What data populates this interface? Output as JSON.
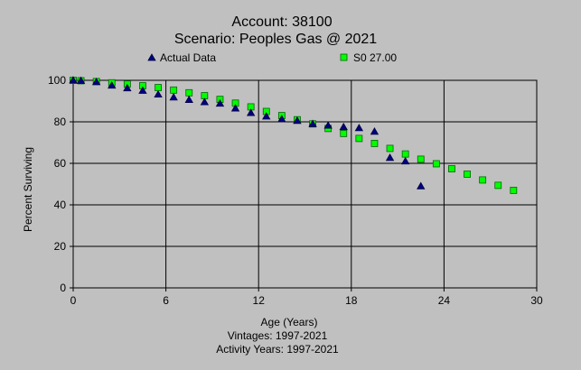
{
  "chart_data": {
    "type": "scatter",
    "title": "Account: 38100",
    "subtitle": "Scenario: Peoples Gas @ 2021",
    "xlabel": "Age (Years)",
    "ylabel": "Percent Surviving",
    "xlim": [
      0,
      30
    ],
    "ylim": [
      0,
      100
    ],
    "xticks": [
      0,
      6,
      12,
      18,
      24,
      30
    ],
    "yticks": [
      0,
      20,
      40,
      60,
      80,
      100
    ],
    "grid": true,
    "legend_position": "top",
    "footer": [
      "Vintages: 1997-2021",
      "Activity Years: 1997-2021"
    ],
    "series": [
      {
        "name": "Actual Data",
        "marker": "triangle",
        "color": "#000080",
        "x": [
          0,
          0.5,
          1.5,
          2.5,
          3.5,
          4.5,
          5.5,
          6.5,
          7.5,
          8.5,
          9.5,
          10.5,
          11.5,
          12.5,
          13.5,
          14.5,
          15.5,
          16.5,
          17.5,
          18.5,
          19.5,
          20.5,
          21.5,
          22.5
        ],
        "y": [
          100,
          99.8,
          99.2,
          97.5,
          96.2,
          95,
          93.2,
          91.8,
          90.6,
          89.5,
          88.8,
          86.5,
          84.3,
          82.6,
          81.3,
          80.5,
          79,
          78.2,
          77.5,
          77,
          75.3,
          62.7,
          61,
          49
        ]
      },
      {
        "name": "S0 27.00",
        "marker": "square",
        "color": "#00ff00",
        "x": [
          0,
          0.5,
          1.5,
          2.5,
          3.5,
          4.5,
          5.5,
          6.5,
          7.5,
          8.5,
          9.5,
          10.5,
          11.5,
          12.5,
          13.5,
          14.5,
          15.5,
          16.5,
          17.5,
          18.5,
          19.5,
          20.5,
          21.5,
          22.5,
          23.5,
          24.5,
          25.5,
          26.5,
          27.5,
          28.5
        ],
        "y": [
          100,
          99.8,
          99.4,
          98.8,
          98.2,
          97.4,
          96.5,
          95.3,
          94,
          92.6,
          90.8,
          89,
          87.2,
          85,
          83,
          81,
          79,
          76.8,
          74.4,
          72,
          69.6,
          67.2,
          64.5,
          62,
          59.8,
          57.4,
          54.8,
          52,
          49.4,
          47
        ]
      }
    ]
  }
}
